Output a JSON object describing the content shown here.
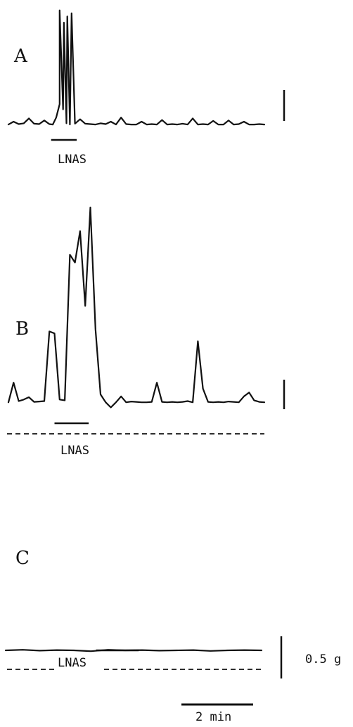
{
  "chart_data": [
    {
      "type": "line",
      "panel_label": "A",
      "stimulus_label": "LNAS",
      "x": [
        0,
        0.3,
        0.6,
        0.9,
        1.2,
        1.5,
        1.8,
        2.1,
        2.4,
        2.6,
        2.8,
        3.0,
        3.2,
        3.4,
        3.6,
        3.9,
        4.2,
        4.5,
        4.8,
        5.1,
        5.4,
        5.7,
        6.0,
        6.3,
        6.6,
        6.9,
        7.2,
        7.5,
        7.8,
        8.1,
        8.4,
        8.7,
        9.0,
        9.3,
        9.6,
        9.9,
        10.2,
        10.5,
        10.8,
        11.1,
        11.4,
        11.7,
        12.0,
        12.3,
        12.6,
        12.9,
        13.2,
        13.5,
        13.8,
        14.1,
        14.4,
        14.7,
        15.0
      ],
      "y": [
        0.05,
        0.12,
        0.06,
        0.08,
        0.2,
        0.07,
        0.06,
        0.15,
        0.06,
        0.05,
        0.22,
        0.55,
        0.42,
        0.08,
        0.05,
        0.07,
        0.18,
        0.07,
        0.06,
        0.05,
        0.08,
        0.06,
        0.12,
        0.05,
        0.22,
        0.06,
        0.05,
        0.05,
        0.12,
        0.05,
        0.06,
        0.05,
        0.16,
        0.05,
        0.06,
        0.05,
        0.07,
        0.05,
        0.2,
        0.05,
        0.06,
        0.05,
        0.14,
        0.05,
        0.05,
        0.15,
        0.05,
        0.06,
        0.12,
        0.05,
        0.05,
        0.06,
        0.05
      ],
      "peaks": [
        {
          "x": 3.0,
          "y": 2.85
        },
        {
          "x": 3.25,
          "y": 2.55
        },
        {
          "x": 3.45,
          "y": 2.7
        },
        {
          "x": 3.7,
          "y": 2.78
        }
      ],
      "stimulus_x": [
        2.5,
        4.0
      ]
    },
    {
      "type": "line",
      "panel_label": "B",
      "stimulus_label": "LNAS",
      "x": [
        0,
        0.3,
        0.6,
        0.9,
        1.2,
        1.5,
        1.8,
        2.1,
        2.4,
        2.7,
        3.0,
        3.3,
        3.6,
        3.9,
        4.2,
        4.5,
        4.8,
        5.1,
        5.4,
        5.7,
        6.0,
        6.3,
        6.6,
        6.9,
        7.2,
        7.5,
        7.8,
        8.1,
        8.4,
        8.7,
        9.0,
        9.3,
        9.6,
        9.9,
        10.2,
        10.5,
        10.8,
        11.1,
        11.4,
        11.7,
        12.0,
        12.3,
        12.6,
        12.9,
        13.2,
        13.5,
        13.8,
        14.1,
        14.4,
        14.7,
        15.0
      ],
      "y": [
        0.05,
        0.55,
        0.08,
        0.12,
        0.18,
        0.06,
        0.07,
        0.08,
        1.85,
        1.8,
        0.12,
        0.1,
        3.8,
        3.6,
        4.4,
        2.5,
        5.0,
        1.9,
        0.25,
        0.05,
        -0.08,
        0.05,
        0.2,
        0.05,
        0.07,
        0.06,
        0.05,
        0.05,
        0.06,
        0.55,
        0.06,
        0.05,
        0.06,
        0.05,
        0.06,
        0.08,
        0.05,
        1.6,
        0.4,
        0.06,
        0.05,
        0.06,
        0.05,
        0.07,
        0.06,
        0.05,
        0.2,
        0.3,
        0.1,
        0.06,
        0.05
      ],
      "stimulus_x": [
        2.7,
        4.7
      ]
    },
    {
      "type": "line",
      "panel_label": "C",
      "stimulus_label": "LNAS",
      "x": [
        0,
        1,
        2,
        3,
        4,
        5,
        6,
        7,
        8,
        9,
        10,
        11,
        12,
        13,
        14,
        15
      ],
      "y": [
        0.05,
        0.07,
        0.04,
        0.06,
        0.05,
        0.02,
        0.07,
        0.05,
        0.06,
        0.04,
        0.05,
        0.06,
        0.03,
        0.05,
        0.06,
        0.05
      ],
      "stimulus_x": [
        5.3,
        7.8
      ]
    }
  ],
  "scale": {
    "force_label": "0.5 g",
    "time_label": "2 min"
  }
}
